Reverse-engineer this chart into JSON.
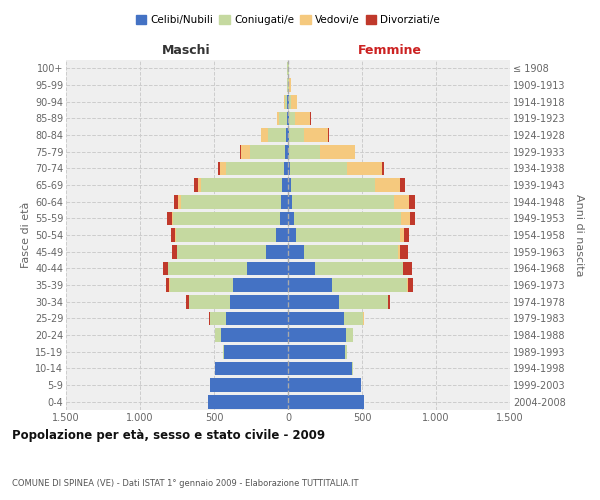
{
  "age_groups": [
    "0-4",
    "5-9",
    "10-14",
    "15-19",
    "20-24",
    "25-29",
    "30-34",
    "35-39",
    "40-44",
    "45-49",
    "50-54",
    "55-59",
    "60-64",
    "65-69",
    "70-74",
    "75-79",
    "80-84",
    "85-89",
    "90-94",
    "95-99",
    "100+"
  ],
  "birth_years": [
    "2004-2008",
    "1999-2003",
    "1994-1998",
    "1989-1993",
    "1984-1988",
    "1979-1983",
    "1974-1978",
    "1969-1973",
    "1964-1968",
    "1959-1963",
    "1954-1958",
    "1949-1953",
    "1944-1948",
    "1939-1943",
    "1934-1938",
    "1929-1933",
    "1924-1928",
    "1919-1923",
    "1914-1918",
    "1909-1913",
    "≤ 1908"
  ],
  "maschi": {
    "celibi": [
      540,
      530,
      490,
      430,
      450,
      420,
      390,
      370,
      280,
      150,
      80,
      55,
      45,
      40,
      30,
      20,
      15,
      10,
      5,
      3,
      2
    ],
    "coniugati": [
      0,
      0,
      2,
      10,
      40,
      110,
      280,
      430,
      530,
      600,
      680,
      720,
      680,
      550,
      390,
      240,
      120,
      50,
      15,
      5,
      2
    ],
    "vedovi": [
      0,
      0,
      0,
      0,
      0,
      0,
      1,
      2,
      2,
      3,
      5,
      10,
      15,
      20,
      40,
      60,
      45,
      15,
      5,
      2,
      1
    ],
    "divorziati": [
      0,
      0,
      0,
      0,
      2,
      5,
      15,
      25,
      35,
      30,
      25,
      30,
      30,
      25,
      15,
      5,
      5,
      2,
      0,
      0,
      0
    ]
  },
  "femmine": {
    "nubili": [
      515,
      495,
      435,
      385,
      390,
      375,
      345,
      295,
      185,
      105,
      55,
      38,
      30,
      20,
      15,
      10,
      10,
      5,
      5,
      3,
      2
    ],
    "coniugate": [
      0,
      0,
      2,
      15,
      48,
      135,
      330,
      510,
      590,
      640,
      700,
      725,
      685,
      565,
      385,
      205,
      95,
      42,
      15,
      5,
      2
    ],
    "vedove": [
      0,
      0,
      0,
      0,
      0,
      1,
      2,
      3,
      5,
      15,
      30,
      60,
      100,
      175,
      235,
      235,
      165,
      105,
      42,
      15,
      5
    ],
    "divorziate": [
      0,
      0,
      0,
      0,
      2,
      5,
      15,
      38,
      58,
      48,
      35,
      38,
      42,
      30,
      15,
      5,
      5,
      2,
      0,
      0,
      0
    ]
  },
  "colors": {
    "celibi": "#4472c4",
    "coniugati": "#c5d9a0",
    "vedovi": "#f5c97e",
    "divorziati": "#c0392b"
  },
  "xlim": 1500,
  "title": "Popolazione per età, sesso e stato civile - 2009",
  "subtitle": "COMUNE DI SPINEA (VE) - Dati ISTAT 1° gennaio 2009 - Elaborazione TUTTITALIA.IT",
  "ylabel_left": "Fasce di età",
  "ylabel_right": "Anni di nascita",
  "header_left": "Maschi",
  "header_right": "Femmine",
  "xtick_vals": [
    -1500,
    -1000,
    -500,
    0,
    500,
    1000,
    1500
  ],
  "xtick_labels": [
    "1.500",
    "1.000",
    "500",
    "0",
    "500",
    "1.000",
    "1.500"
  ],
  "bg_color": "#efefef",
  "grid_color": "#cccccc",
  "legend_labels": [
    "Celibi/Nubili",
    "Coniugati/e",
    "Vedovi/e",
    "Divorziati/e"
  ]
}
